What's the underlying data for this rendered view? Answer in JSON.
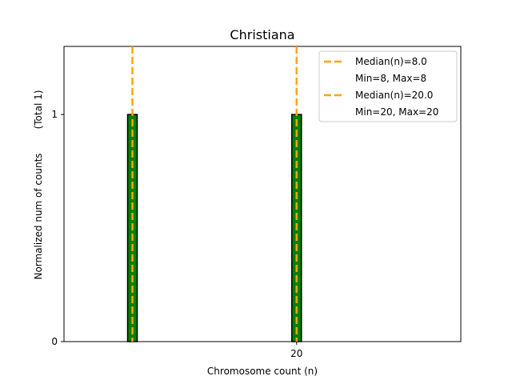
{
  "chart_data": {
    "type": "bar",
    "title": "Christiana",
    "xlabel": "Chromosome count (n)",
    "ylabel": "Normalized num of counts",
    "ylabel_note": "(Total 1)",
    "xlim": [
      3,
      32
    ],
    "ylim": [
      0,
      1.3
    ],
    "x_ticks": [
      20
    ],
    "y_ticks": [
      0,
      1
    ],
    "bars": [
      {
        "x": 8,
        "value": 1,
        "width": 0.7
      },
      {
        "x": 20,
        "value": 1,
        "width": 0.7
      }
    ],
    "median_lines": [
      {
        "x": 8.0,
        "label": "Median(n)=8.0",
        "range_label": "Min=8, Max=8"
      },
      {
        "x": 20.0,
        "label": "Median(n)=20.0",
        "range_label": "Min=20, Max=20"
      }
    ],
    "colors": {
      "bar_fill": "#008000",
      "bar_edge": "#000000",
      "median_line": "#FFA500"
    },
    "legend_placement": "top-right",
    "grid": false
  }
}
